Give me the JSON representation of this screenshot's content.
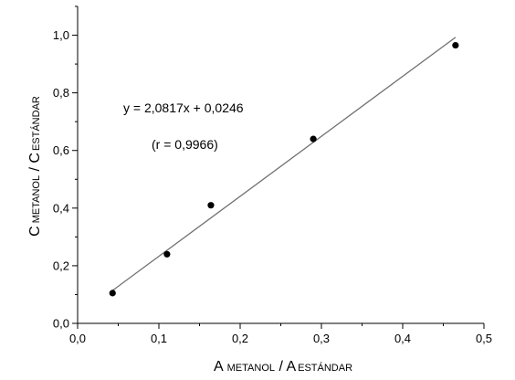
{
  "chart_data": {
    "type": "scatter",
    "title": "",
    "xlabel": {
      "main": "A",
      "sub1": "METANOL",
      "sep": " / ",
      "main2": "A",
      "sub2": "ESTÁNDAR"
    },
    "ylabel": {
      "main": "C",
      "sub1": "METANOL",
      "sep": " / ",
      "main2": "C",
      "sub2": "ESTÁNDAR"
    },
    "xlim": [
      0.0,
      0.5
    ],
    "ylim": [
      0.0,
      1.1
    ],
    "x_ticks": [
      0.0,
      0.1,
      0.2,
      0.3,
      0.4,
      0.5
    ],
    "x_tick_labels": [
      "0,0",
      "0,1",
      "0,2",
      "0,3",
      "0,4",
      "0,5"
    ],
    "y_ticks": [
      0.0,
      0.2,
      0.4,
      0.6,
      0.8,
      1.0
    ],
    "y_tick_labels": [
      "0,0",
      "0,2",
      "0,4",
      "0,6",
      "0,8",
      "1,0"
    ],
    "grid": false,
    "series": [
      {
        "x": [
          0.043,
          0.11,
          0.164,
          0.29,
          0.465
        ],
        "y": [
          0.105,
          0.24,
          0.41,
          0.64,
          0.965
        ],
        "color": "#000000"
      }
    ],
    "fit_line": {
      "slope": 2.0817,
      "intercept": 0.0246,
      "x_range": [
        0.043,
        0.465
      ],
      "color": "#707070"
    },
    "annotations": {
      "equation": "y = 2,0817x + 0,0246",
      "r_value": "(r = 0,9966)"
    }
  }
}
